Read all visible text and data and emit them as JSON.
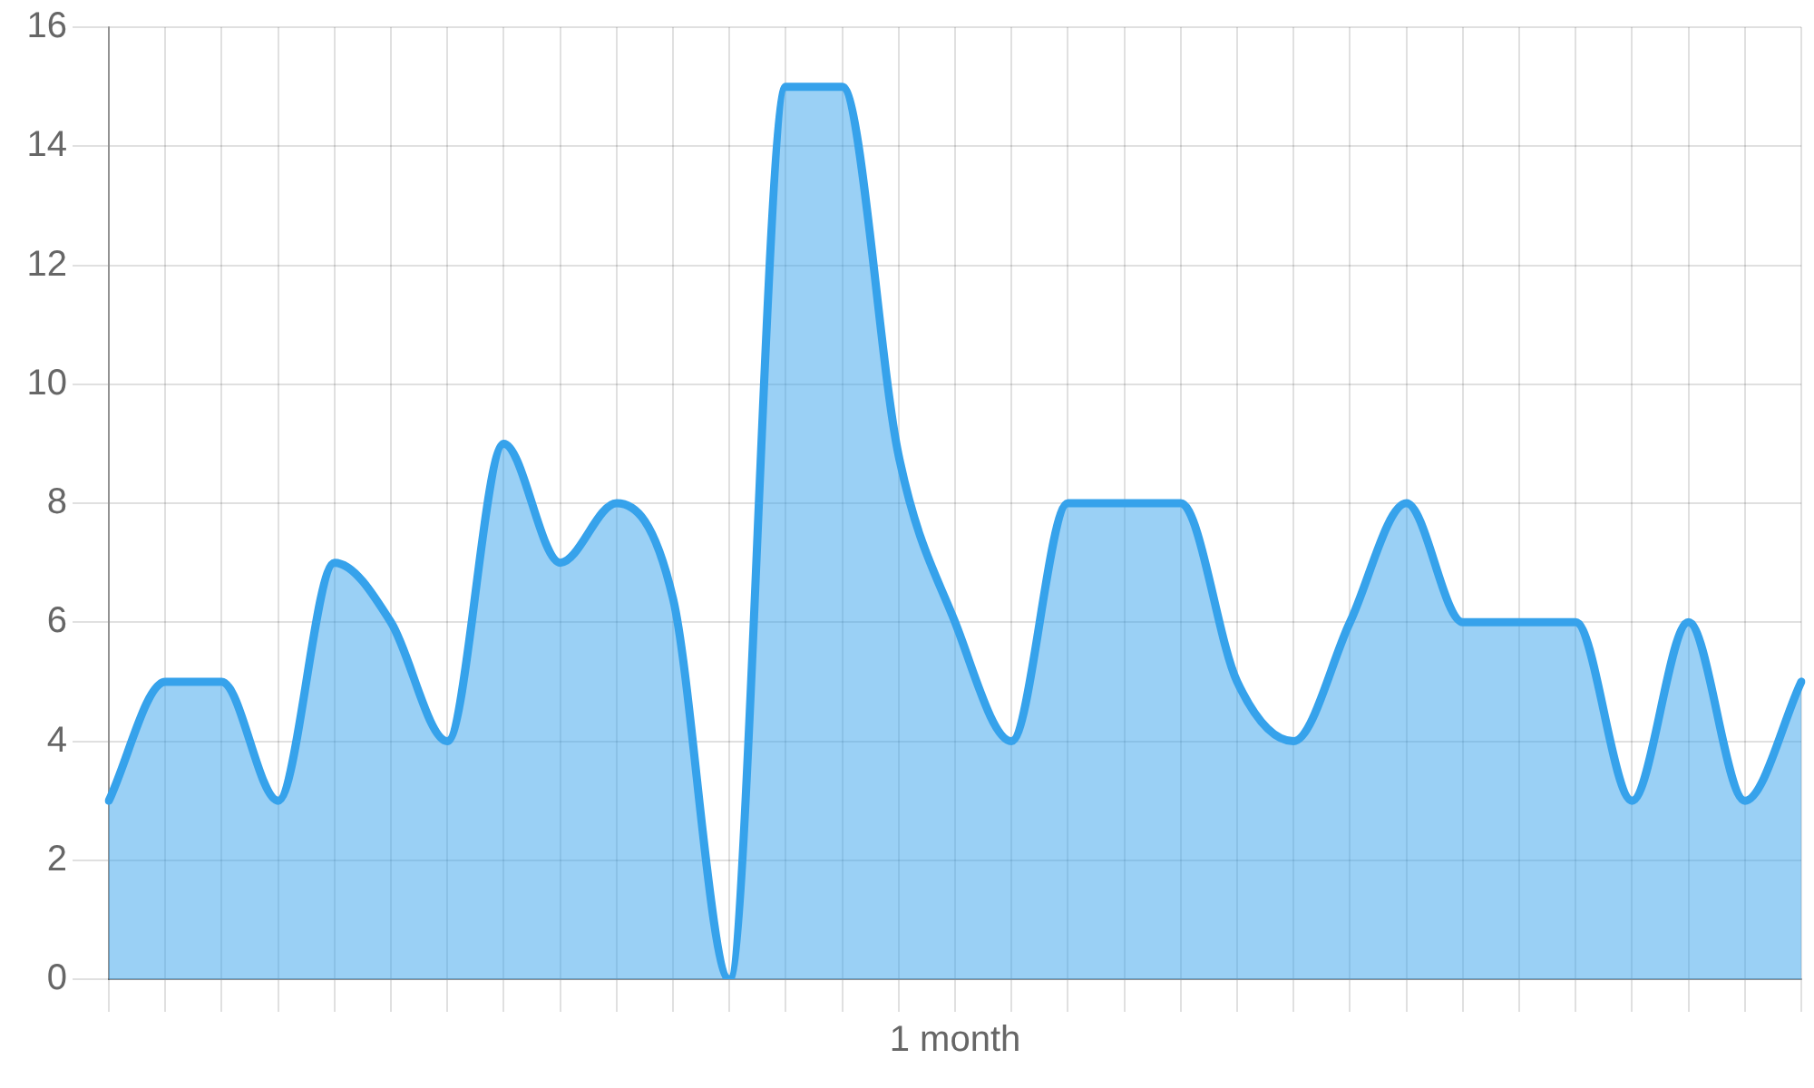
{
  "chart_data": {
    "type": "area",
    "xlabel": "1 month",
    "categories": [
      null,
      null,
      null,
      null,
      null,
      null,
      null,
      null,
      null,
      null,
      null,
      null,
      null,
      null,
      null,
      null,
      null,
      null,
      null,
      null,
      null,
      null,
      null,
      null,
      null,
      null,
      null,
      null,
      null,
      null,
      null
    ],
    "values": [
      3,
      5,
      5,
      3,
      7,
      6,
      4,
      9,
      7,
      8,
      6.4,
      0,
      15,
      15,
      8.8,
      6,
      4,
      8,
      8,
      8,
      5,
      4,
      6,
      8,
      6,
      6,
      6,
      3,
      6,
      3,
      5
    ],
    "color": "#36a2eb",
    "ylim": [
      0,
      16
    ],
    "yticks": [
      0,
      2,
      4,
      6,
      8,
      10,
      12,
      14,
      16
    ],
    "grid": true,
    "marker": "none",
    "line_style": "solid"
  }
}
